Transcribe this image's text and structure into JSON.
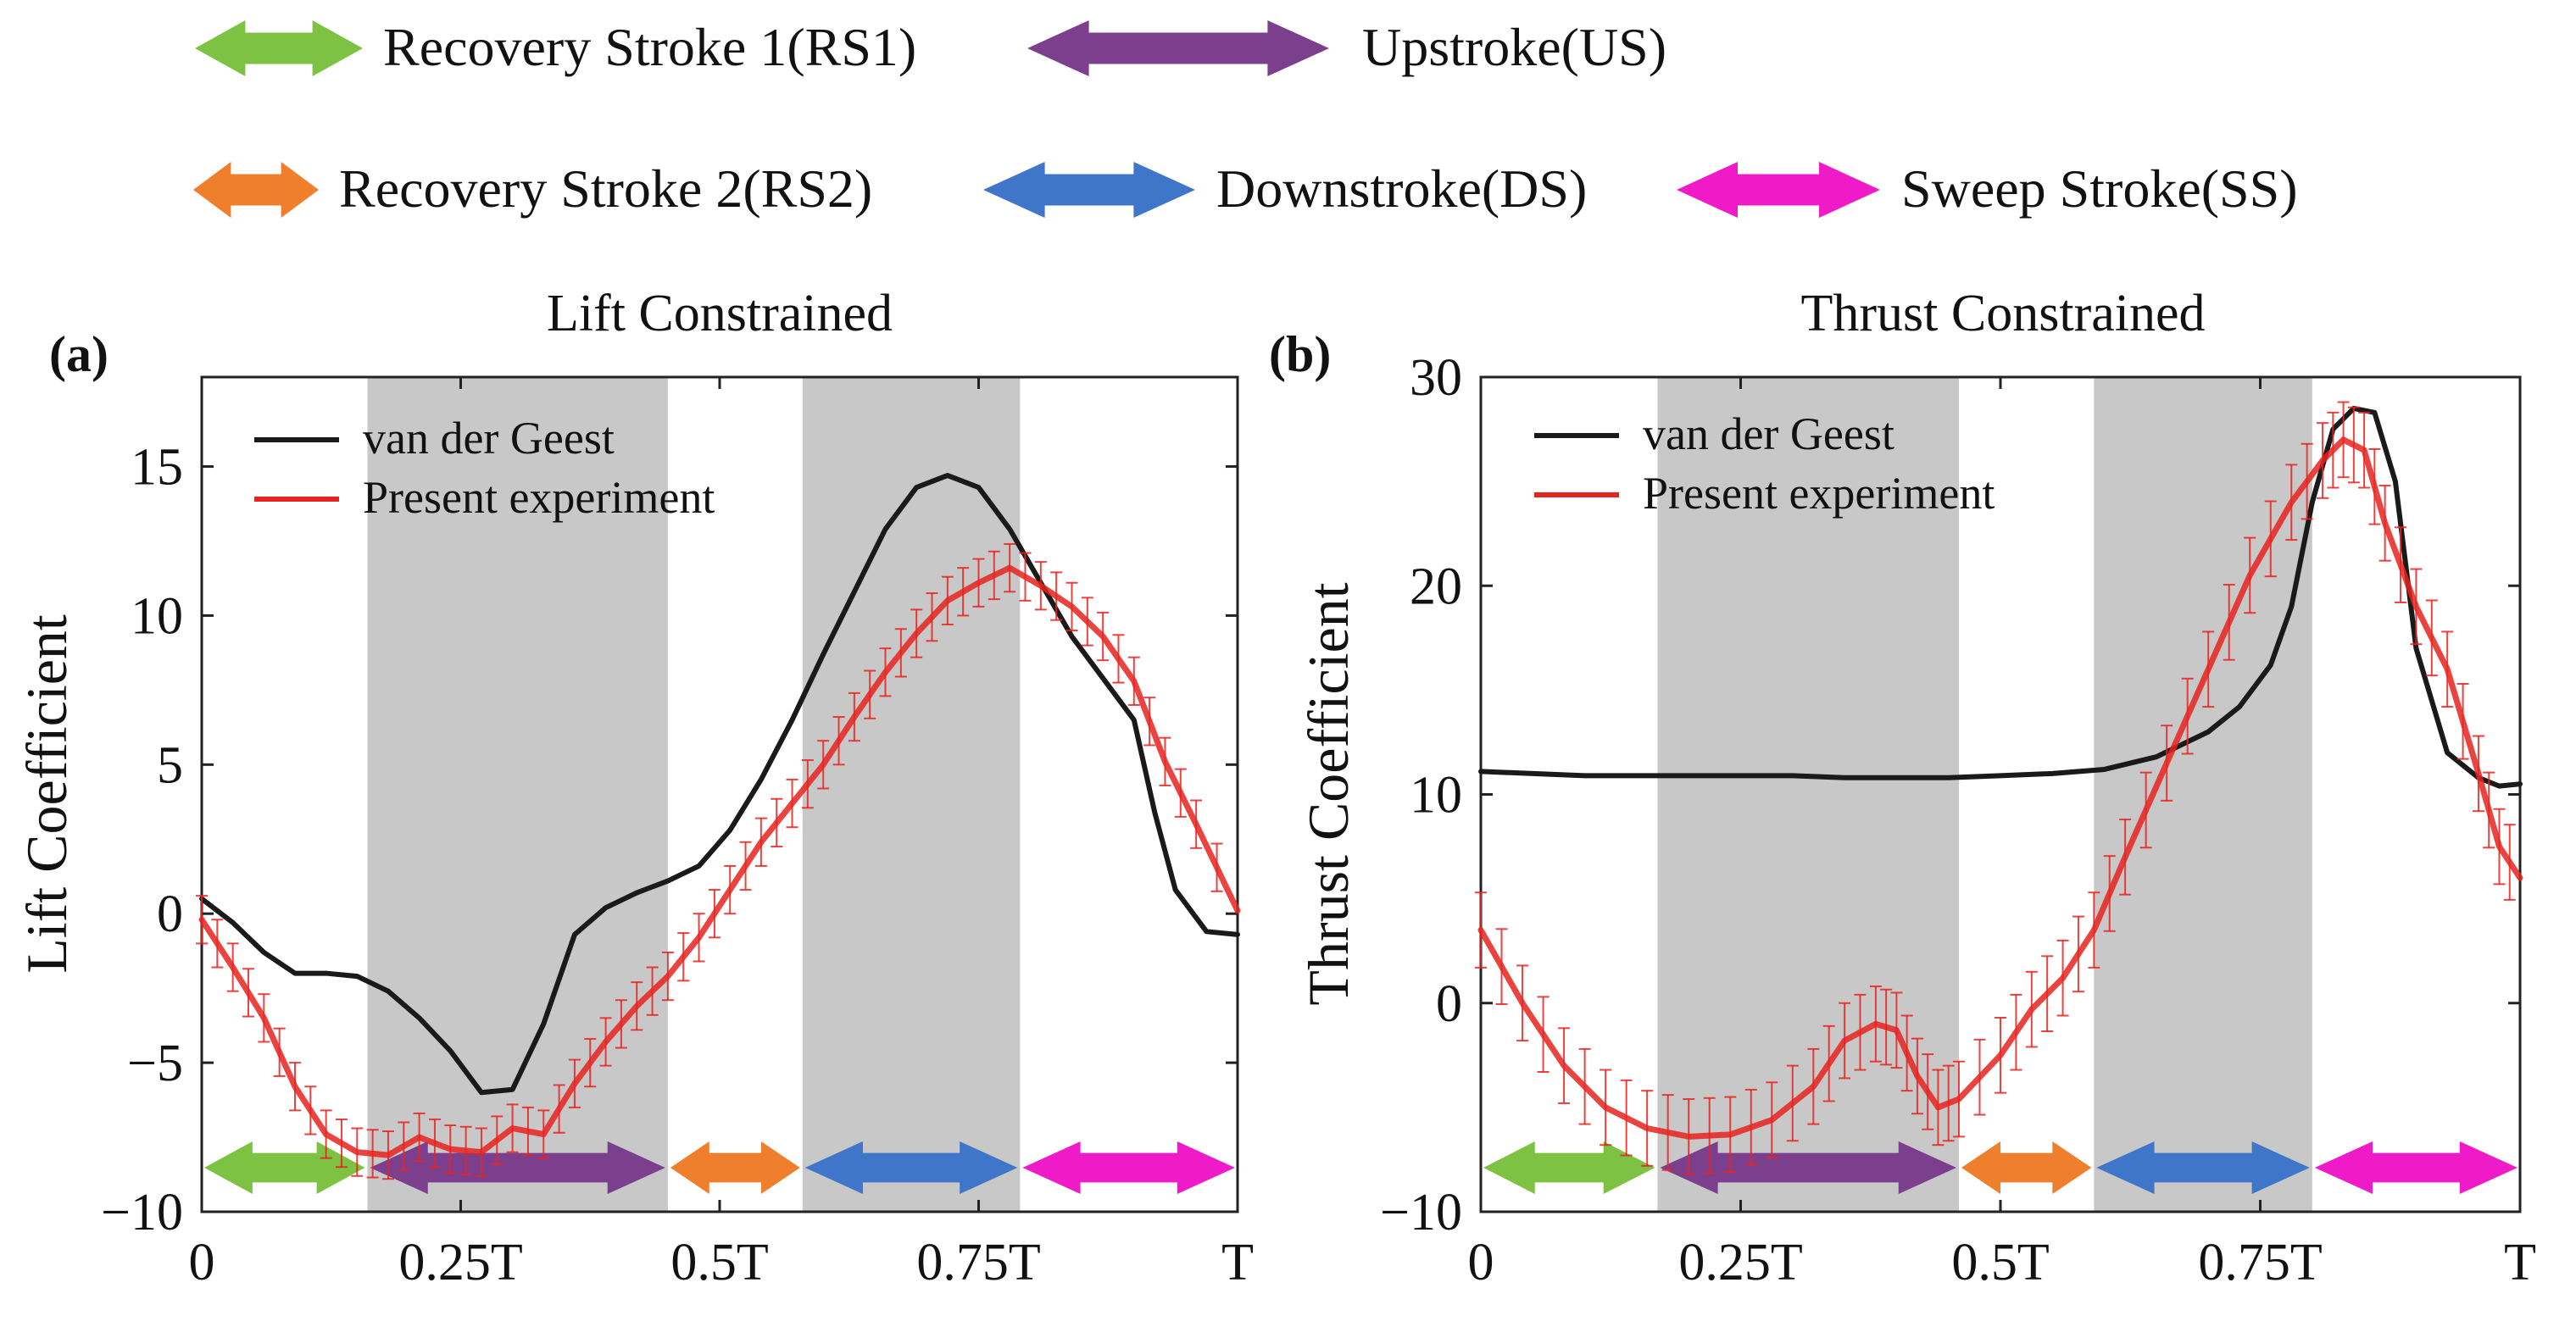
{
  "phase_legend": [
    {
      "label": "Recovery Stroke 1(RS1)",
      "color": "#7dc242"
    },
    {
      "label": "Upstroke(US)",
      "color": "#7b3f8e"
    },
    {
      "label": "Recovery Stroke 2(RS2)",
      "color": "#ef7f2c"
    },
    {
      "label": "Downstroke(DS)",
      "color": "#3f76c9"
    },
    {
      "label": "Sweep Stroke(SS)",
      "color": "#f01bc8"
    }
  ],
  "chart_data": [
    {
      "type": "line",
      "panel_label": "(a)",
      "title": "Lift Constrained",
      "xlabel": "",
      "ylabel": "Lift Coefficient",
      "x_tick_labels": [
        "0",
        "0.25T",
        "0.5T",
        "0.75T",
        "T"
      ],
      "x_tick_values": [
        0,
        0.25,
        0.5,
        0.75,
        1
      ],
      "xlim": [
        0,
        1
      ],
      "ylim": [
        -10,
        18
      ],
      "yticks": [
        -10,
        -5,
        0,
        5,
        10,
        15
      ],
      "shaded_regions": [
        [
          0.16,
          0.45
        ],
        [
          0.58,
          0.79
        ]
      ],
      "phase_arrows": [
        {
          "phase": "RS1",
          "start": 0.0,
          "end": 0.16
        },
        {
          "phase": "US",
          "start": 0.16,
          "end": 0.45
        },
        {
          "phase": "RS2",
          "start": 0.45,
          "end": 0.58
        },
        {
          "phase": "DS",
          "start": 0.58,
          "end": 0.79
        },
        {
          "phase": "SS",
          "start": 0.79,
          "end": 1.0
        }
      ],
      "series": [
        {
          "name": "van der Geest",
          "color": "#1a1a1a",
          "x": [
            0,
            0.03,
            0.06,
            0.09,
            0.12,
            0.15,
            0.18,
            0.21,
            0.24,
            0.27,
            0.3,
            0.33,
            0.36,
            0.39,
            0.42,
            0.45,
            0.48,
            0.51,
            0.54,
            0.57,
            0.6,
            0.63,
            0.66,
            0.69,
            0.72,
            0.75,
            0.78,
            0.81,
            0.84,
            0.87,
            0.9,
            0.92,
            0.94,
            0.97,
            1.0
          ],
          "y": [
            0.5,
            -0.3,
            -1.3,
            -2.0,
            -2.0,
            -2.1,
            -2.6,
            -3.5,
            -4.6,
            -6.0,
            -5.9,
            -3.7,
            -0.7,
            0.2,
            0.7,
            1.1,
            1.6,
            2.8,
            4.5,
            6.5,
            8.7,
            10.8,
            12.9,
            14.3,
            14.7,
            14.3,
            12.9,
            11.1,
            9.3,
            7.9,
            6.5,
            3.4,
            0.8,
            -0.6,
            -0.7
          ]
        },
        {
          "name": "Present experiment",
          "color": "#e8231f",
          "error": 0.8,
          "x": [
            0,
            0.03,
            0.06,
            0.09,
            0.12,
            0.15,
            0.18,
            0.21,
            0.24,
            0.27,
            0.3,
            0.33,
            0.36,
            0.39,
            0.42,
            0.45,
            0.48,
            0.51,
            0.54,
            0.57,
            0.6,
            0.63,
            0.66,
            0.69,
            0.72,
            0.75,
            0.78,
            0.81,
            0.84,
            0.87,
            0.9,
            0.93,
            0.96,
            1.0
          ],
          "y": [
            -0.2,
            -1.8,
            -3.5,
            -5.8,
            -7.4,
            -8.0,
            -8.1,
            -7.5,
            -7.9,
            -8.0,
            -7.2,
            -7.4,
            -5.7,
            -4.3,
            -3.1,
            -2.1,
            -0.8,
            0.8,
            2.4,
            3.7,
            5.0,
            6.6,
            8.1,
            9.4,
            10.5,
            11.1,
            11.6,
            11.0,
            10.3,
            9.3,
            7.8,
            5.1,
            3.0,
            0.1
          ]
        }
      ]
    },
    {
      "type": "line",
      "panel_label": "(b)",
      "title": "Thrust Constrained",
      "xlabel": "",
      "ylabel": "Thrust Coefficient",
      "x_tick_labels": [
        "0",
        "0.25T",
        "0.5T",
        "0.75T",
        "T"
      ],
      "x_tick_values": [
        0,
        0.25,
        0.5,
        0.75,
        1
      ],
      "xlim": [
        0,
        1
      ],
      "ylim": [
        -10,
        30
      ],
      "yticks": [
        -10,
        0,
        10,
        20,
        30
      ],
      "shaded_regions": [
        [
          0.17,
          0.46
        ],
        [
          0.59,
          0.8
        ]
      ],
      "phase_arrows": [
        {
          "phase": "RS1",
          "start": 0.0,
          "end": 0.17
        },
        {
          "phase": "US",
          "start": 0.17,
          "end": 0.46
        },
        {
          "phase": "RS2",
          "start": 0.46,
          "end": 0.59
        },
        {
          "phase": "DS",
          "start": 0.59,
          "end": 0.8
        },
        {
          "phase": "SS",
          "start": 0.8,
          "end": 1.0
        }
      ],
      "series": [
        {
          "name": "van der Geest",
          "color": "#1a1a1a",
          "x": [
            0,
            0.05,
            0.1,
            0.15,
            0.2,
            0.25,
            0.3,
            0.35,
            0.4,
            0.45,
            0.5,
            0.55,
            0.6,
            0.65,
            0.7,
            0.73,
            0.76,
            0.78,
            0.8,
            0.82,
            0.84,
            0.86,
            0.88,
            0.9,
            0.93,
            0.96,
            0.98,
            1.0
          ],
          "y": [
            11.1,
            11.0,
            10.9,
            10.9,
            10.9,
            10.9,
            10.9,
            10.8,
            10.8,
            10.8,
            10.9,
            11.0,
            11.2,
            11.8,
            13.0,
            14.2,
            16.2,
            19.0,
            24.0,
            27.5,
            28.5,
            28.3,
            25.0,
            17.0,
            12.0,
            10.8,
            10.4,
            10.5
          ]
        },
        {
          "name": "Present experiment",
          "color": "#e8231f",
          "error": 1.8,
          "x": [
            0,
            0.04,
            0.08,
            0.12,
            0.16,
            0.2,
            0.24,
            0.28,
            0.32,
            0.35,
            0.38,
            0.4,
            0.42,
            0.44,
            0.46,
            0.5,
            0.53,
            0.56,
            0.59,
            0.62,
            0.66,
            0.7,
            0.74,
            0.78,
            0.81,
            0.83,
            0.85,
            0.87,
            0.9,
            0.93,
            0.96,
            0.98,
            1.0
          ],
          "y": [
            3.5,
            0.0,
            -3.0,
            -5.0,
            -6.0,
            -6.4,
            -6.3,
            -5.6,
            -4.0,
            -1.8,
            -1.0,
            -1.3,
            -3.5,
            -5.0,
            -4.6,
            -2.5,
            -0.3,
            1.2,
            3.5,
            7.0,
            11.5,
            16.0,
            20.5,
            24.0,
            26.0,
            27.0,
            26.5,
            23.0,
            19.0,
            16.0,
            11.0,
            7.5,
            6.0
          ]
        }
      ]
    }
  ]
}
